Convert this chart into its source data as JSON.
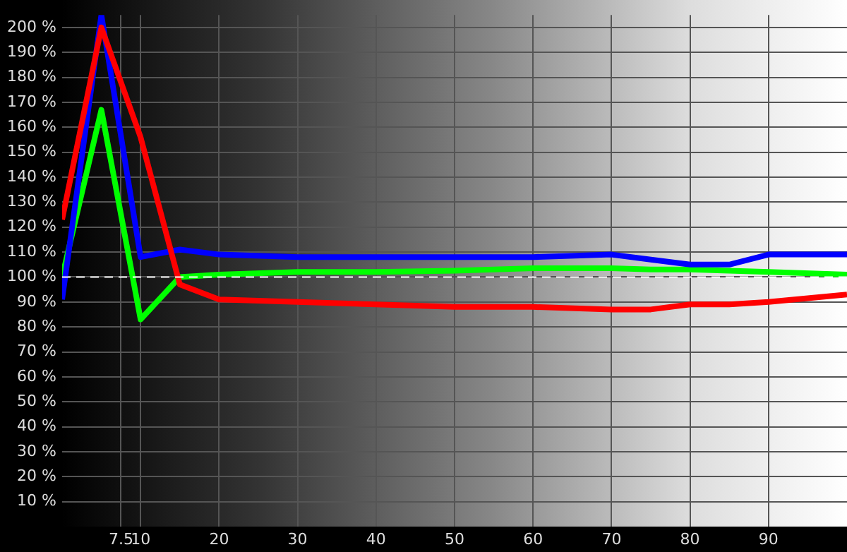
{
  "chart_data": {
    "type": "line",
    "x": [
      0,
      5,
      10,
      15,
      20,
      30,
      40,
      50,
      60,
      70,
      75,
      80,
      85,
      90,
      100
    ],
    "series": [
      {
        "color": "#ff0000",
        "values": [
          123,
          200,
          156,
          97,
          91,
          90,
          89,
          88,
          88,
          87,
          87,
          89,
          89,
          90,
          93
        ]
      },
      {
        "color": "#0000ff",
        "values": [
          91,
          205,
          108,
          111,
          109,
          108,
          108,
          108,
          108,
          109,
          107,
          105,
          105,
          109,
          109
        ]
      },
      {
        "color": "#00ff00",
        "values": [
          100,
          167,
          83,
          100,
          101,
          102,
          102,
          102.5,
          103.5,
          103.5,
          103,
          103,
          102.5,
          102,
          101
        ]
      }
    ],
    "xlim": [
      0,
      100
    ],
    "ylim": [
      0,
      205
    ],
    "xticks": [
      7.5,
      10,
      20,
      30,
      40,
      50,
      60,
      70,
      80,
      90
    ],
    "yticks": [
      {
        "value": 10,
        "label": "10 %"
      },
      {
        "value": 20,
        "label": "20 %"
      },
      {
        "value": 30,
        "label": "30 %"
      },
      {
        "value": 40,
        "label": "40 %"
      },
      {
        "value": 50,
        "label": "50 %"
      },
      {
        "value": 60,
        "label": "60 %"
      },
      {
        "value": 70,
        "label": "70 %"
      },
      {
        "value": 80,
        "label": "80 %"
      },
      {
        "value": 90,
        "label": "90 %"
      },
      {
        "value": 100,
        "label": "100 %"
      },
      {
        "value": 110,
        "label": "110 %"
      },
      {
        "value": 120,
        "label": "120 %"
      },
      {
        "value": 130,
        "label": "130 %"
      },
      {
        "value": 140,
        "label": "140 %"
      },
      {
        "value": 150,
        "label": "150 %"
      },
      {
        "value": 160,
        "label": "160 %"
      },
      {
        "value": 170,
        "label": "170 %"
      },
      {
        "value": 180,
        "label": "180 %"
      },
      {
        "value": 190,
        "label": "190 %"
      },
      {
        "value": 200,
        "label": "200 %"
      }
    ],
    "ref_lines": [
      {
        "axis": "y",
        "value": 100,
        "color": "#ffffff",
        "line_style": "dashed"
      }
    ],
    "grid": true,
    "legend": false,
    "marker": "none",
    "line_style": "solid"
  }
}
